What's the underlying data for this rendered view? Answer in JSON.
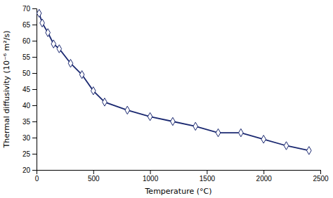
{
  "chart_data": {
    "type": "line",
    "x": [
      23,
      50,
      100,
      150,
      200,
      300,
      400,
      500,
      600,
      800,
      1000,
      1200,
      1400,
      1600,
      1800,
      2000,
      2200,
      2400
    ],
    "values": [
      68.5,
      65.5,
      62.5,
      59.0,
      57.5,
      53.0,
      49.5,
      44.5,
      41.0,
      38.5,
      36.5,
      35.0,
      33.5,
      31.5,
      31.5,
      29.5,
      27.5,
      26.0
    ],
    "color": "#1a2870",
    "marker": "diamond",
    "xlabel": "Temperature (°C)",
    "ylabel": "Thermal diffusivity (10⁻⁶ m²/s)",
    "xlim": [
      0,
      2500
    ],
    "ylim": [
      20,
      70
    ],
    "xticks": [
      0,
      500,
      1000,
      1500,
      2000,
      2500
    ],
    "yticks": [
      20,
      25,
      30,
      35,
      40,
      45,
      50,
      55,
      60,
      65,
      70
    ],
    "grid": false
  }
}
